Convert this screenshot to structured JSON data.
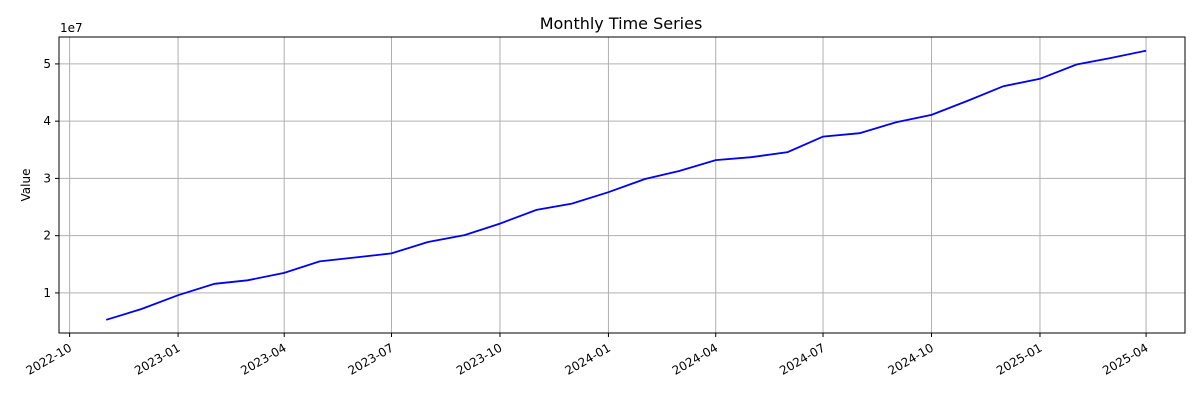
{
  "chart_data": {
    "type": "line",
    "title": "Monthly Time Series",
    "xlabel": "",
    "ylabel": "Value",
    "y_exponent_label": "1e7",
    "y_multiplier": 10000000,
    "grid": true,
    "legend": "none",
    "colors": {
      "line": "#0000ee"
    },
    "xlim": [
      "2022-09-22",
      "2025-05-04"
    ],
    "ylim": [
      3000000,
      54700000
    ],
    "x_ticks": [
      "2022-10",
      "2023-01",
      "2023-04",
      "2023-07",
      "2023-10",
      "2024-01",
      "2024-04",
      "2024-07",
      "2024-10",
      "2025-01",
      "2025-04"
    ],
    "y_ticks": [
      1,
      2,
      3,
      4,
      5
    ],
    "series": [
      {
        "x": [
          "2022-11-01",
          "2022-12-01",
          "2023-01-01",
          "2023-02-01",
          "2023-03-01",
          "2023-04-01",
          "2023-05-01",
          "2023-06-01",
          "2023-07-01",
          "2023-08-01",
          "2023-09-01",
          "2023-10-01",
          "2023-11-01",
          "2023-12-01",
          "2024-01-01",
          "2024-02-01",
          "2024-03-01",
          "2024-04-01",
          "2024-05-01",
          "2024-06-01",
          "2024-07-01",
          "2024-08-01",
          "2024-09-01",
          "2024-10-01",
          "2024-11-01",
          "2024-12-01",
          "2025-01-01",
          "2025-02-01",
          "2025-03-01",
          "2025-04-01"
        ],
        "values": [
          5300000,
          7200000,
          9600000,
          11600000,
          12200000,
          13500000,
          15500000,
          16200000,
          16900000,
          18900000,
          20100000,
          22100000,
          24500000,
          25600000,
          27600000,
          29900000,
          31300000,
          33200000,
          33700000,
          34600000,
          37300000,
          37900000,
          39800000,
          41100000,
          43600000,
          46100000,
          47400000,
          49900000,
          51000000,
          52300000
        ]
      }
    ]
  }
}
